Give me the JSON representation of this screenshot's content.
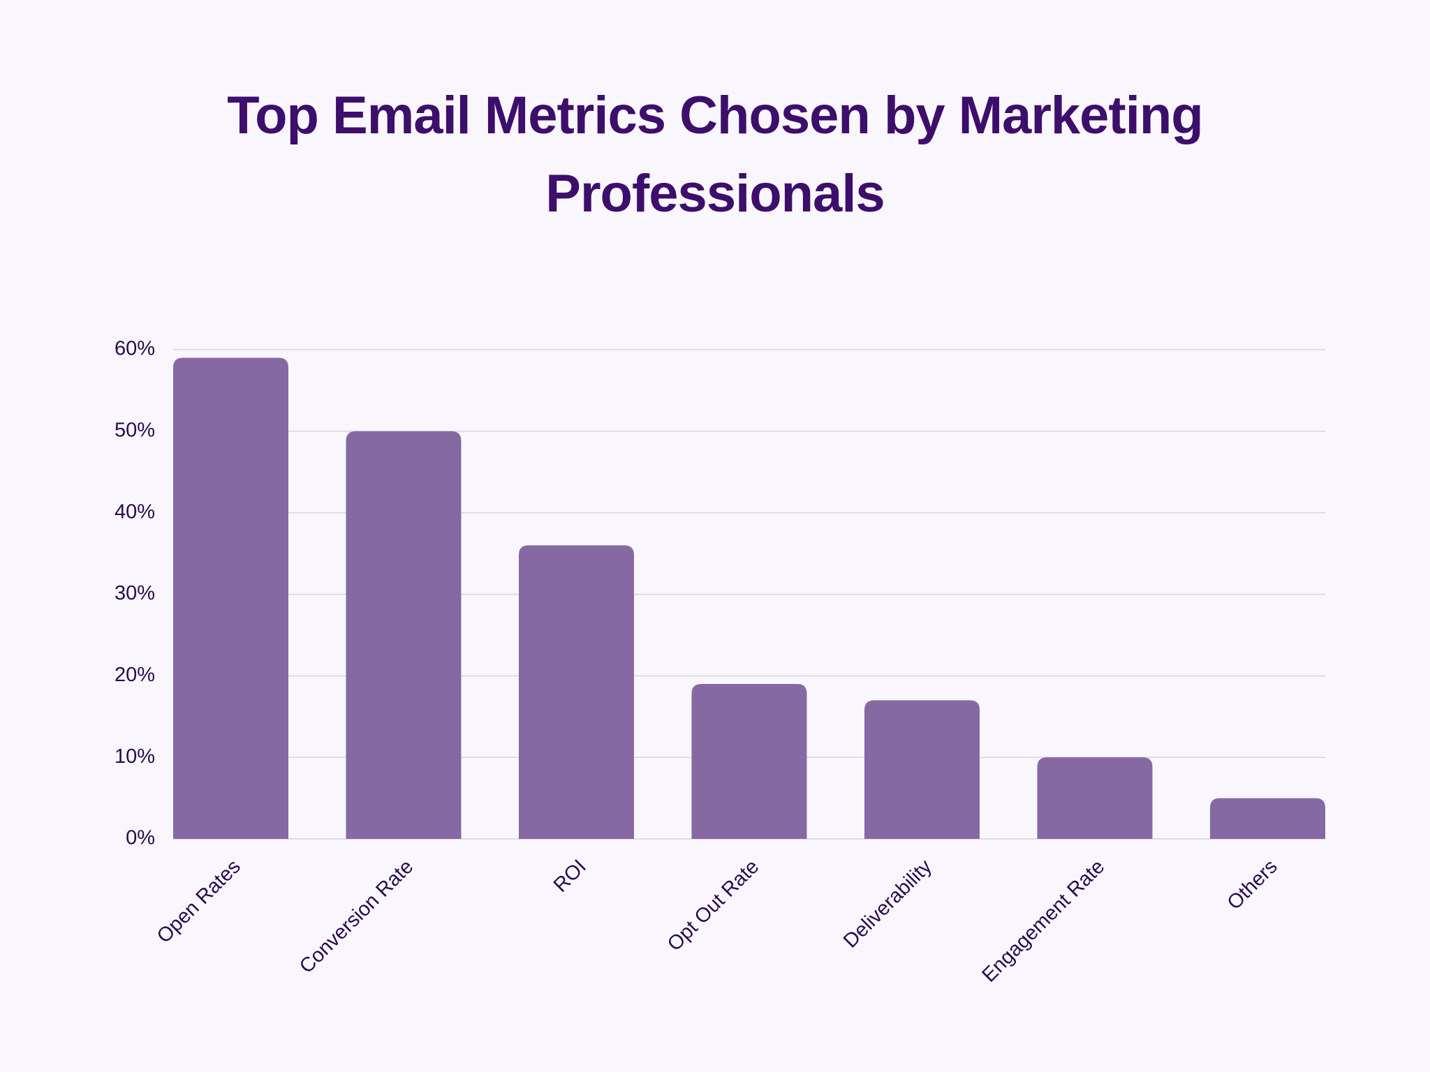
{
  "chart_data": {
    "type": "bar",
    "title": "Top Email Metrics Chosen by Marketing Professionals",
    "categories": [
      "Open Rates",
      "Conversion Rate",
      "ROI",
      "Opt Out Rate",
      "Deliverability",
      "Engagement Rate",
      "Others"
    ],
    "values": [
      59,
      50,
      36,
      19,
      17,
      10,
      5
    ],
    "color": "#8669a3",
    "ylim": [
      0,
      60
    ],
    "yticks": [
      {
        "value": 0,
        "label": "0%"
      },
      {
        "value": 10,
        "label": "10%"
      },
      {
        "value": 20,
        "label": "20%"
      },
      {
        "value": 30,
        "label": "30%"
      },
      {
        "value": 40,
        "label": "40%"
      },
      {
        "value": 50,
        "label": "50%"
      },
      {
        "value": 60,
        "label": "60%"
      }
    ],
    "grid": true
  }
}
